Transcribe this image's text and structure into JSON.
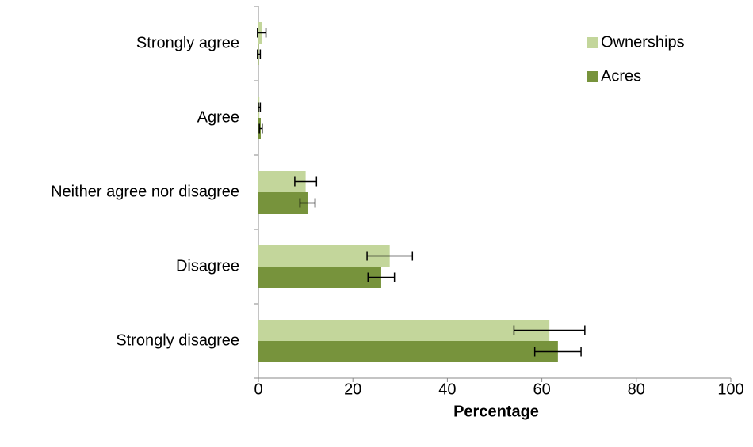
{
  "chart_data": {
    "type": "hbar",
    "categories": [
      "Strongly agree",
      "Agree",
      "Neither agree nor disagree",
      "Disagree",
      "Strongly disagree"
    ],
    "series": [
      {
        "name": "Ownerships",
        "color": "#c3d69b",
        "values": [
          0.7,
          0.2,
          10.0,
          27.8,
          61.6
        ],
        "errors": [
          0.9,
          0.2,
          2.3,
          4.8,
          7.5
        ]
      },
      {
        "name": "Acres",
        "color": "#77933c",
        "values": [
          0.1,
          0.5,
          10.4,
          26.0,
          63.4
        ],
        "errors": [
          0.3,
          0.3,
          1.6,
          2.8,
          4.9
        ]
      }
    ],
    "x_label": "Percentage",
    "xlim": [
      0,
      100
    ],
    "xticks": [
      0,
      20,
      40,
      60,
      80,
      100
    ],
    "grid": false,
    "legend": "top-right"
  }
}
